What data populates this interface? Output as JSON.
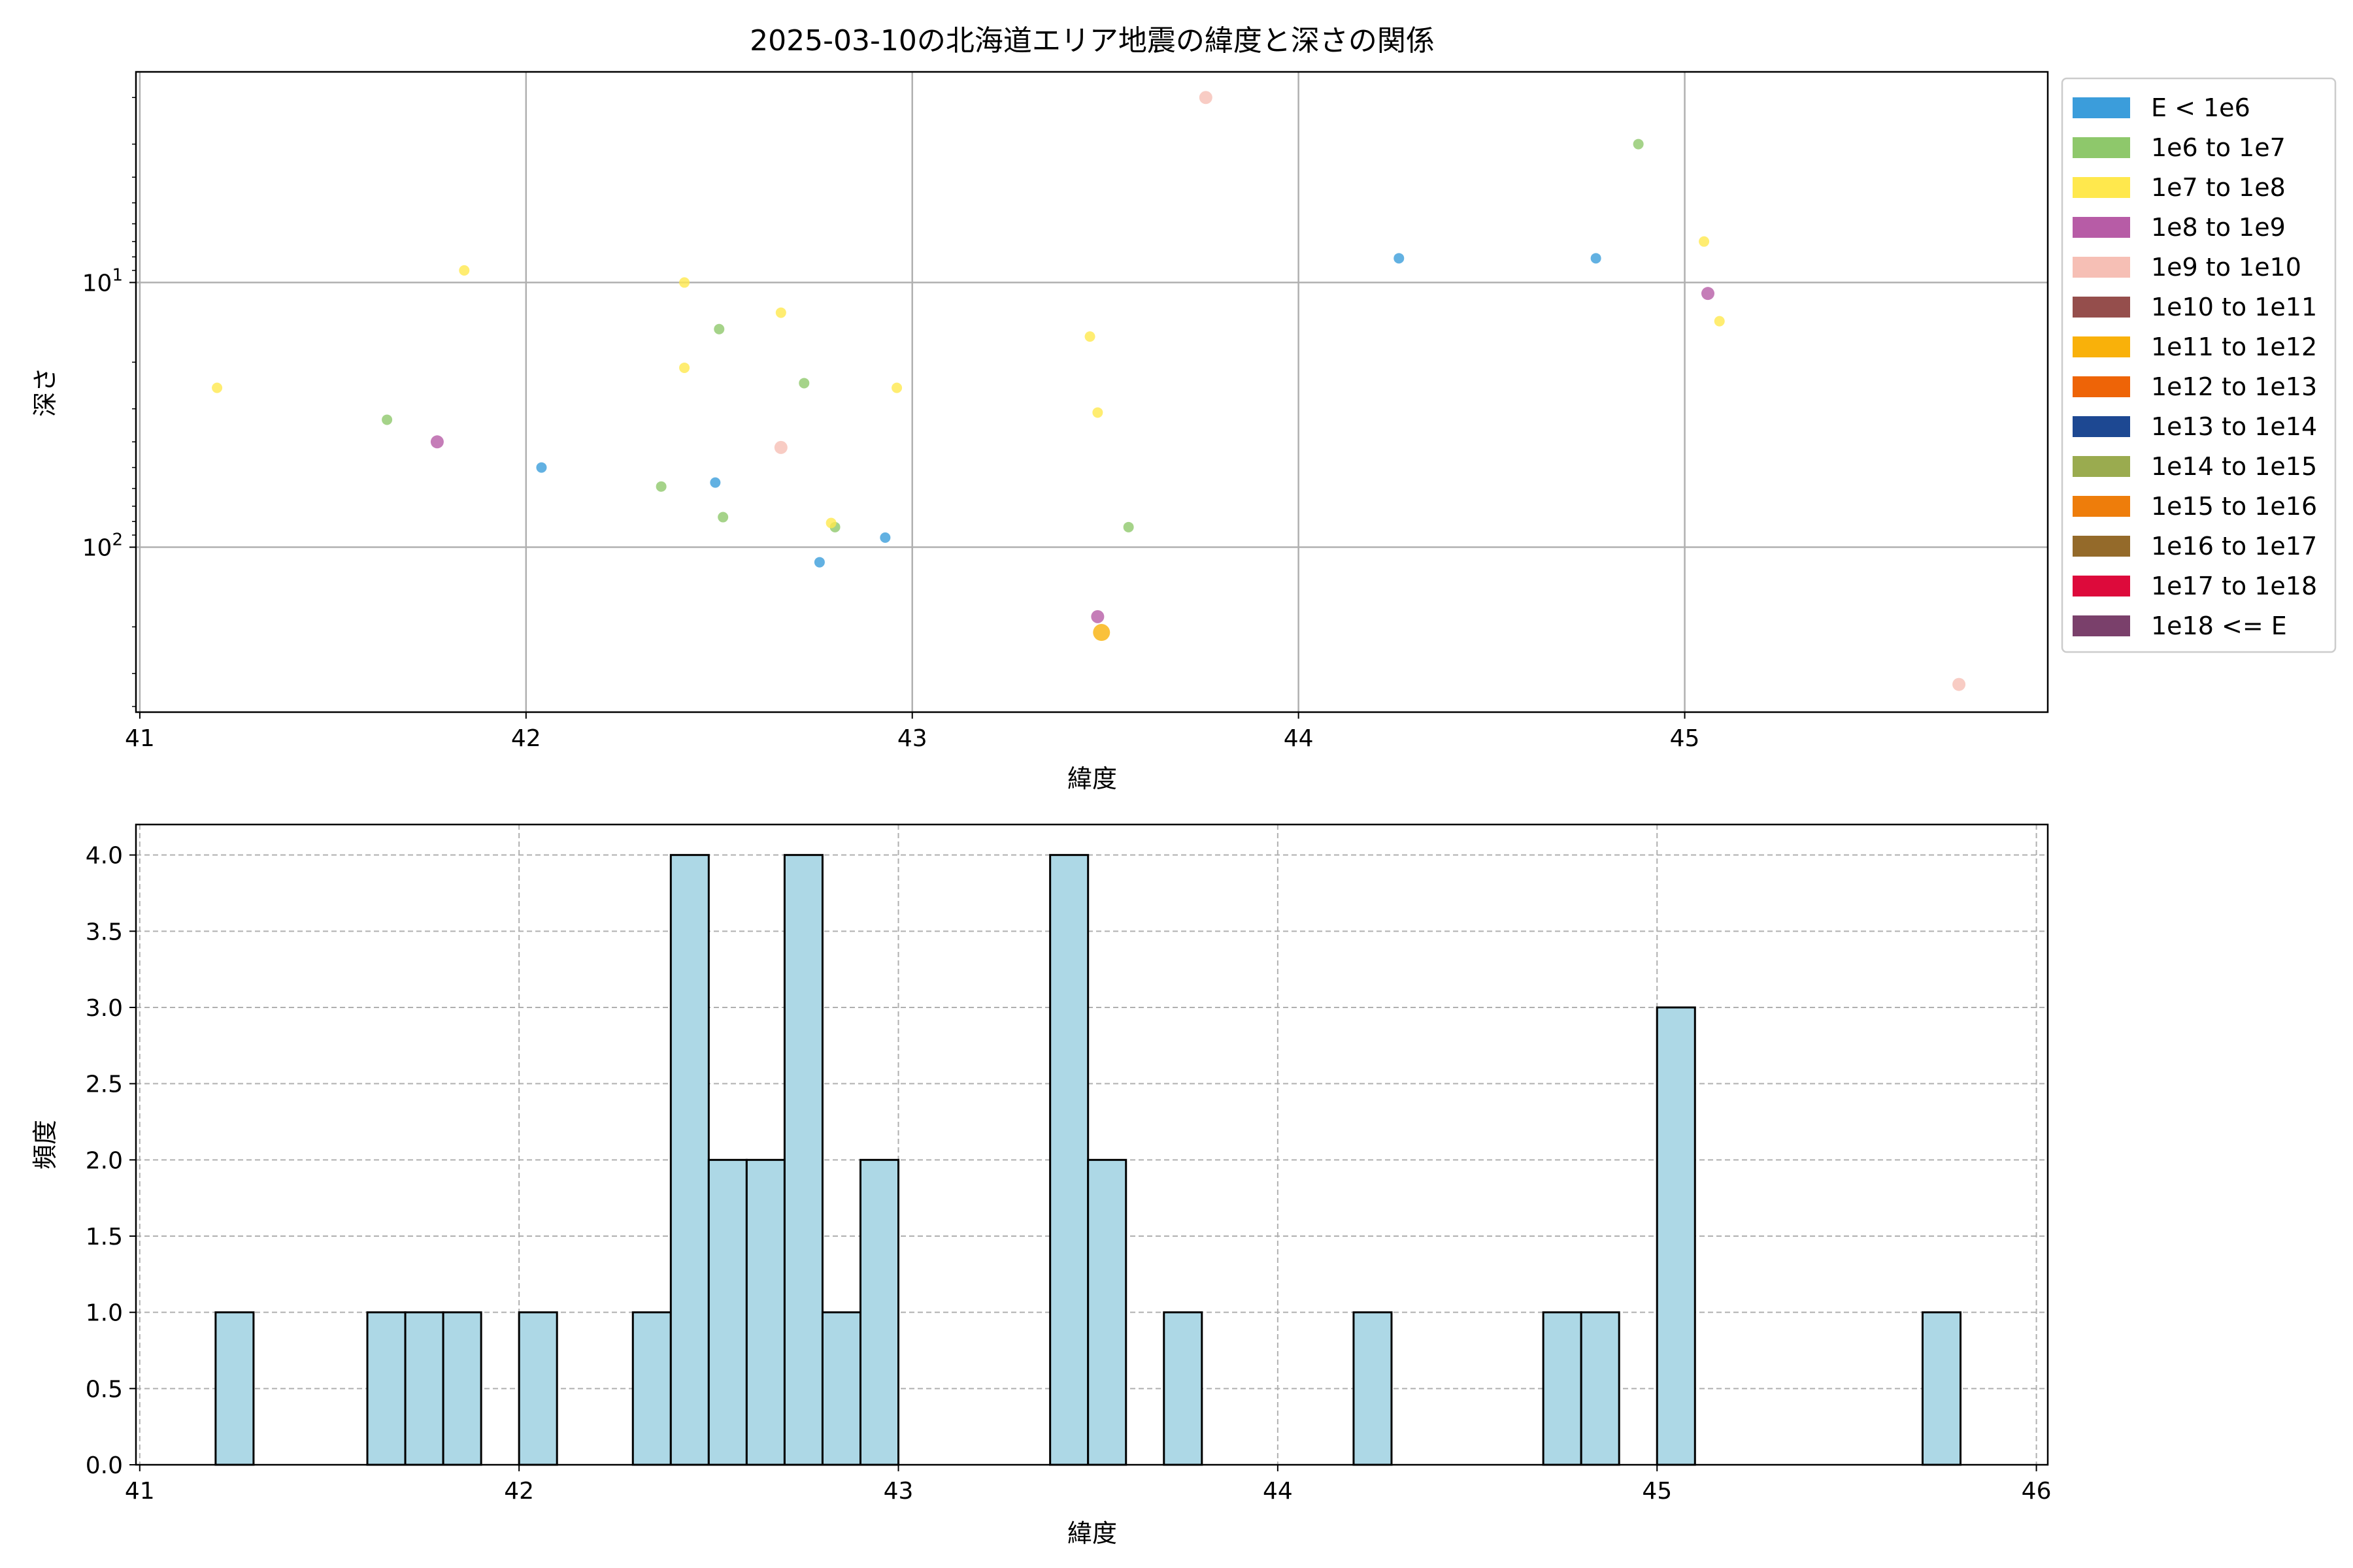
{
  "chart_data": [
    {
      "type": "scatter",
      "title": "2025-03-10の北海道エリア地震の緯度と深さの関係",
      "xlabel": "緯度",
      "ylabel": "深さ",
      "xlim": [
        40.99,
        45.94
      ],
      "ylim": [
        420,
        1.6
      ],
      "y_scale": "log",
      "y_inverted": true,
      "xticks": [
        41,
        42,
        43,
        44,
        45
      ],
      "yticks": [
        {
          "value": 10,
          "base": "10",
          "exp": "1"
        },
        {
          "value": 100,
          "base": "10",
          "exp": "2"
        }
      ],
      "grid": true,
      "legend_position": "outside right",
      "series": [
        {
          "name": "E < 1e6",
          "color": "#3b9ddb",
          "points": [
            [
              42.04,
              50
            ],
            [
              42.49,
              57
            ],
            [
              42.76,
              114
            ],
            [
              42.93,
              92
            ],
            [
              44.26,
              8.1
            ],
            [
              44.77,
              8.1
            ]
          ]
        },
        {
          "name": "1e6 to 1e7",
          "color": "#8ec86b",
          "points": [
            [
              41.64,
              33
            ],
            [
              42.35,
              59
            ],
            [
              42.5,
              15
            ],
            [
              42.51,
              77
            ],
            [
              42.72,
              24
            ],
            [
              42.8,
              84
            ],
            [
              43.56,
              84
            ],
            [
              44.88,
              3
            ]
          ]
        },
        {
          "name": "1e7 to 1e8",
          "color": "#ffe84d",
          "points": [
            [
              41.2,
              25
            ],
            [
              41.84,
              9
            ],
            [
              42.41,
              10
            ],
            [
              42.41,
              21
            ],
            [
              42.66,
              13
            ],
            [
              42.79,
              81
            ],
            [
              42.96,
              25
            ],
            [
              43.46,
              16
            ],
            [
              43.48,
              31
            ],
            [
              45.05,
              7
            ],
            [
              45.09,
              14
            ]
          ]
        },
        {
          "name": "1e8 to 1e9",
          "color": "#b75ca6",
          "points": [
            [
              41.77,
              40
            ],
            [
              43.48,
              183
            ],
            [
              45.06,
              11
            ]
          ]
        },
        {
          "name": "1e9 to 1e10",
          "color": "#f6bfb5",
          "points": [
            [
              42.66,
              42
            ],
            [
              43.76,
              2
            ],
            [
              45.71,
              330
            ]
          ]
        },
        {
          "name": "1e10 to 1e11",
          "color": "#954e4c",
          "points": []
        },
        {
          "name": "1e11 to 1e12",
          "color": "#f9b10a",
          "points": [
            [
              43.49,
              210
            ]
          ]
        },
        {
          "name": "1e12 to 1e13",
          "color": "#ee6407",
          "points": []
        },
        {
          "name": "1e13 to 1e14",
          "color": "#1d4892",
          "points": []
        },
        {
          "name": "1e14 to 1e15",
          "color": "#9aab4f",
          "points": []
        },
        {
          "name": "1e15 to 1e16",
          "color": "#ee7d0b",
          "points": []
        },
        {
          "name": "1e16 to 1e17",
          "color": "#946a2a",
          "points": []
        },
        {
          "name": "1e17 to 1e18",
          "color": "#dd0a3b",
          "points": []
        },
        {
          "name": "1e18 <= E",
          "color": "#7a406b",
          "points": []
        }
      ]
    },
    {
      "type": "bar",
      "title": "",
      "xlabel": "緯度",
      "ylabel": "頻度",
      "xlim": [
        40.99,
        46.03
      ],
      "ylim": [
        0,
        4.2
      ],
      "xticks": [
        41,
        42,
        43,
        44,
        45,
        46
      ],
      "yticks": [
        "0.0",
        "0.5",
        "1.0",
        "1.5",
        "2.0",
        "2.5",
        "3.0",
        "3.5",
        "4.0"
      ],
      "grid": true,
      "bar_color": "#add8e6",
      "bin_width": 0.1,
      "bins": [
        {
          "start": 41.2,
          "count": 1
        },
        {
          "start": 41.6,
          "count": 1
        },
        {
          "start": 41.7,
          "count": 1
        },
        {
          "start": 41.8,
          "count": 1
        },
        {
          "start": 42.0,
          "count": 1
        },
        {
          "start": 42.3,
          "count": 1
        },
        {
          "start": 42.4,
          "count": 4
        },
        {
          "start": 42.5,
          "count": 2
        },
        {
          "start": 42.6,
          "count": 2
        },
        {
          "start": 42.7,
          "count": 4
        },
        {
          "start": 42.8,
          "count": 1
        },
        {
          "start": 42.9,
          "count": 2
        },
        {
          "start": 43.4,
          "count": 4
        },
        {
          "start": 43.5,
          "count": 2
        },
        {
          "start": 43.7,
          "count": 1
        },
        {
          "start": 44.2,
          "count": 1
        },
        {
          "start": 44.7,
          "count": 1
        },
        {
          "start": 44.8,
          "count": 1
        },
        {
          "start": 45.0,
          "count": 3
        },
        {
          "start": 45.7,
          "count": 1
        }
      ]
    }
  ]
}
